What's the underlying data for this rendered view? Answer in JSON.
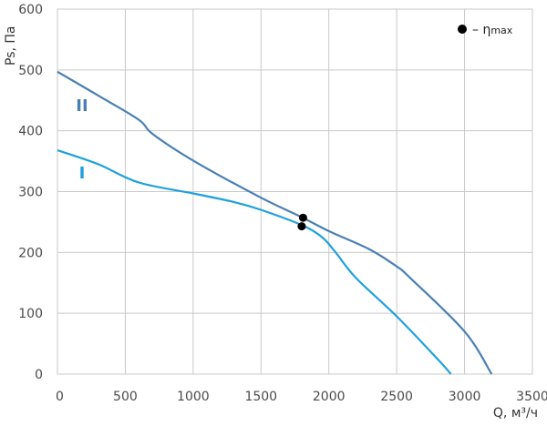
{
  "chart_data": {
    "type": "line",
    "xlabel": "Q, м³/ч",
    "ylabel": "Ps, Па",
    "xlim": [
      0,
      3500
    ],
    "ylim": [
      0,
      600
    ],
    "x_ticks": [
      "0",
      "500",
      "1000",
      "1500",
      "2000",
      "2500",
      "3000",
      "3500"
    ],
    "y_ticks": [
      "0",
      "100",
      "200",
      "300",
      "400",
      "500",
      "600"
    ],
    "grid": true,
    "legend": {
      "position": "top-right",
      "marker": "●",
      "text": "– η",
      "subscript": "max"
    },
    "series": [
      {
        "name": "II",
        "color": "#4a7fb5",
        "points": [
          [
            0,
            497
          ],
          [
            300,
            458
          ],
          [
            600,
            418
          ],
          [
            700,
            395
          ],
          [
            1000,
            351
          ],
          [
            1500,
            290
          ],
          [
            1800,
            258
          ],
          [
            2000,
            235
          ],
          [
            2300,
            205
          ],
          [
            2500,
            177
          ],
          [
            2600,
            158
          ],
          [
            3000,
            70
          ],
          [
            3200,
            0
          ]
        ]
      },
      {
        "name": "I",
        "color": "#1fa0dc",
        "points": [
          [
            0,
            368
          ],
          [
            300,
            345
          ],
          [
            600,
            315
          ],
          [
            1000,
            297
          ],
          [
            1300,
            283
          ],
          [
            1500,
            270
          ],
          [
            1800,
            245
          ],
          [
            1950,
            225
          ],
          [
            2050,
            200
          ],
          [
            2200,
            158
          ],
          [
            2500,
            95
          ],
          [
            2800,
            25
          ],
          [
            2900,
            0
          ]
        ]
      }
    ],
    "efficiency_points": [
      {
        "series": "II",
        "x": 1810,
        "y": 257
      },
      {
        "series": "I",
        "x": 1800,
        "y": 243
      }
    ]
  }
}
